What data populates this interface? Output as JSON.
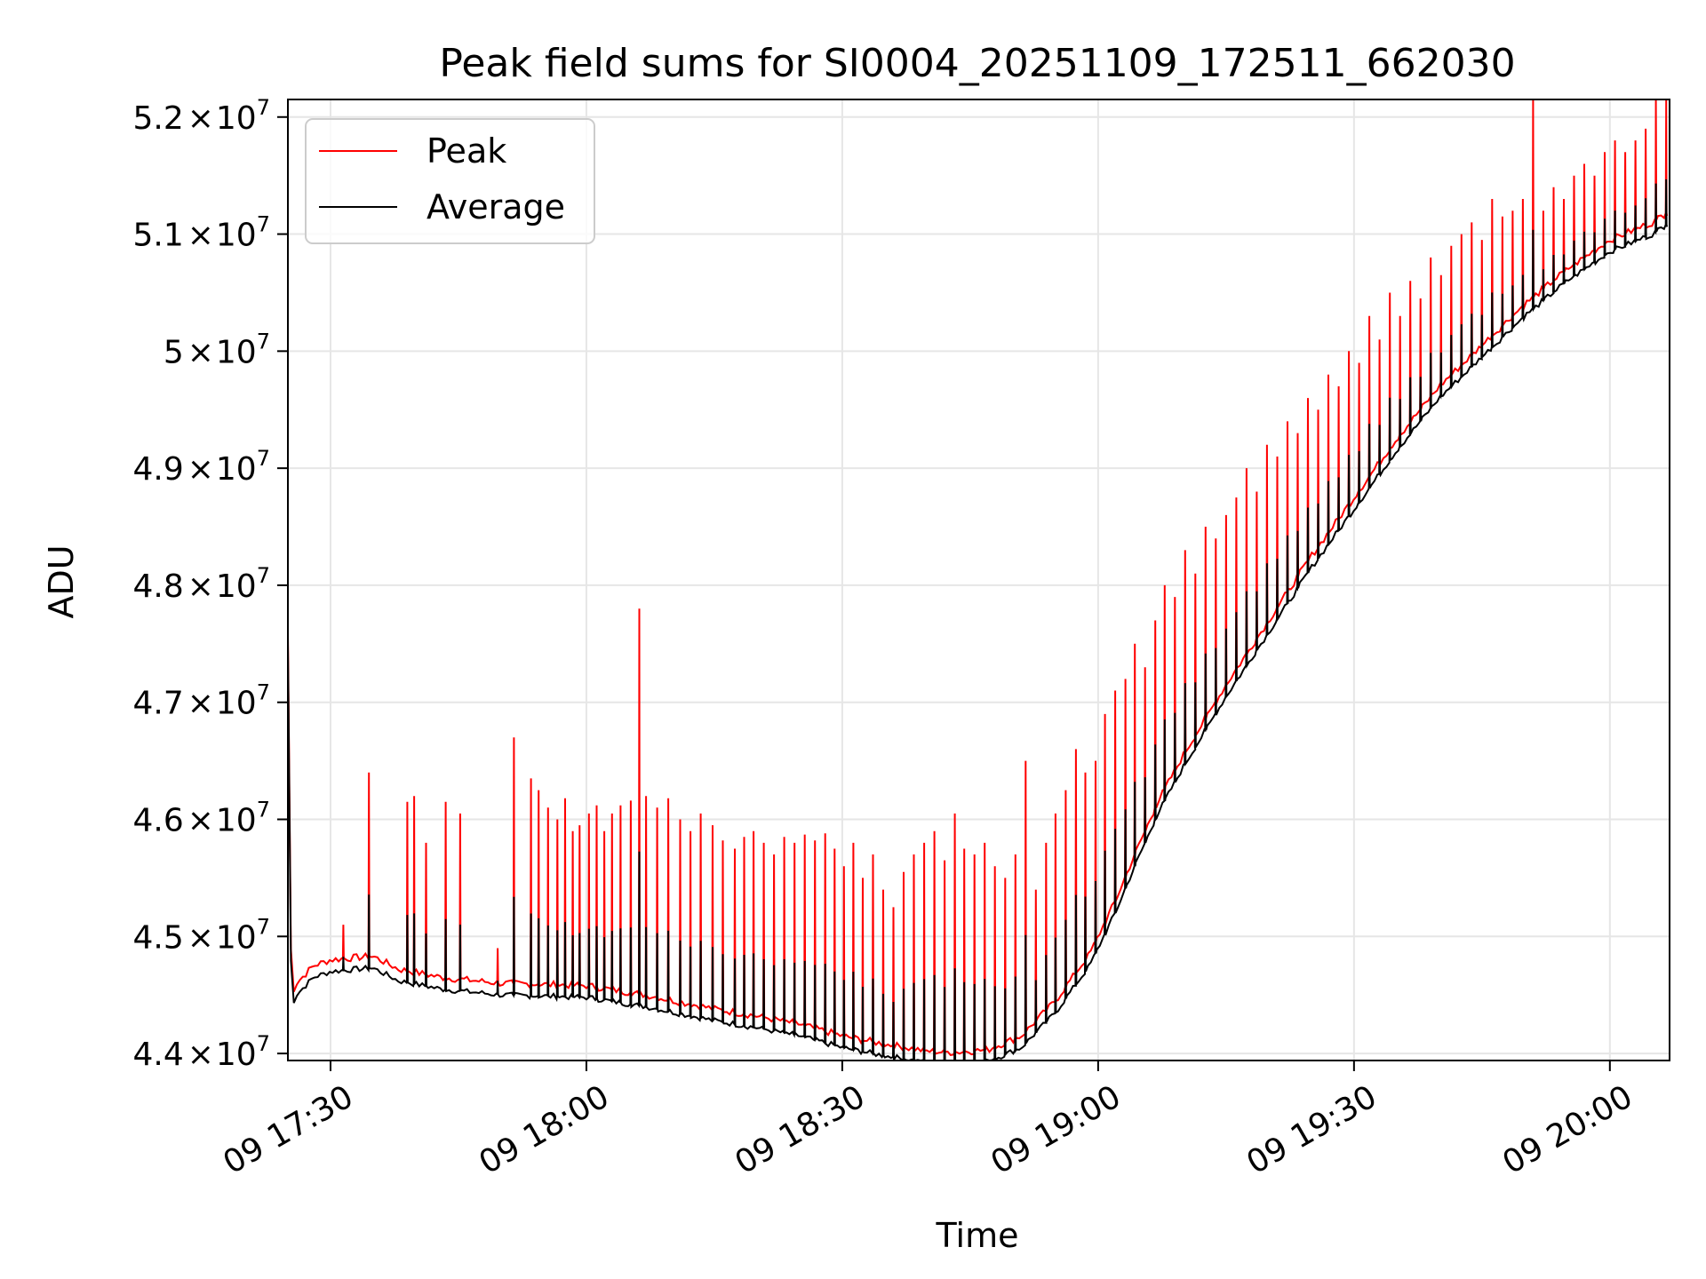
{
  "chart_data": {
    "type": "line",
    "title": "Peak field sums for SI0004_20251109_172511_662030",
    "xlabel": "Time",
    "ylabel": "ADU",
    "grid": true,
    "legend_position": "top-left",
    "x_unit": "minutes since 09 17:25",
    "xlim": [
      0,
      162
    ],
    "ylim": [
      43940000,
      52150000
    ],
    "x_ticks": [
      {
        "value": 5,
        "label": "09 17:30"
      },
      {
        "value": 35,
        "label": "09 18:00"
      },
      {
        "value": 65,
        "label": "09 18:30"
      },
      {
        "value": 95,
        "label": "09 19:00"
      },
      {
        "value": 125,
        "label": "09 19:30"
      },
      {
        "value": 155,
        "label": "09 20:00"
      }
    ],
    "y_ticks": [
      {
        "value": 44000000,
        "mantissa": "4.4",
        "exp": "7"
      },
      {
        "value": 45000000,
        "mantissa": "4.5",
        "exp": "7"
      },
      {
        "value": 46000000,
        "mantissa": "4.6",
        "exp": "7"
      },
      {
        "value": 47000000,
        "mantissa": "4.7",
        "exp": "7"
      },
      {
        "value": 48000000,
        "mantissa": "4.8",
        "exp": "7"
      },
      {
        "value": 49000000,
        "mantissa": "4.9",
        "exp": "7"
      },
      {
        "value": 50000000,
        "mantissa": "5",
        "exp": "7"
      },
      {
        "value": 51000000,
        "mantissa": "5.1",
        "exp": "7"
      },
      {
        "value": 52000000,
        "mantissa": "5.2",
        "exp": "7"
      }
    ],
    "tick_times_symbol": "×",
    "tick_base": "10",
    "series": [
      {
        "name": "Peak",
        "color": "#ff0000",
        "baseline": {
          "x": [
            0,
            0.4,
            1,
            3,
            5,
            8,
            10,
            13,
            18,
            25,
            35,
            42,
            50,
            55,
            60,
            65,
            70,
            75,
            78,
            82,
            86,
            88,
            90,
            92,
            94,
            95,
            97,
            99,
            102,
            105,
            110,
            115,
            120,
            125,
            130,
            135,
            140,
            145,
            150,
            155,
            160,
            162
          ],
          "y": [
            47600000,
            44500000,
            44600000,
            44750000,
            44800000,
            44820000,
            44830000,
            44720000,
            44650000,
            44600000,
            44580000,
            44500000,
            44380000,
            44320000,
            44250000,
            44150000,
            44080000,
            44020000,
            44010000,
            44030000,
            44150000,
            44300000,
            44450000,
            44650000,
            44850000,
            45000000,
            45300000,
            45650000,
            46150000,
            46550000,
            47150000,
            47700000,
            48250000,
            48750000,
            49250000,
            49700000,
            50050000,
            50400000,
            50700000,
            50950000,
            51100000,
            51200000
          ]
        },
        "spikes": [
          {
            "x": 6.5,
            "y": 45100000
          },
          {
            "x": 9.5,
            "y": 46400000
          },
          {
            "x": 14,
            "y": 46150000
          },
          {
            "x": 14.8,
            "y": 46200000
          },
          {
            "x": 16.2,
            "y": 45800000
          },
          {
            "x": 18.5,
            "y": 46150000
          },
          {
            "x": 20.2,
            "y": 46050000
          },
          {
            "x": 24.6,
            "y": 44900000
          },
          {
            "x": 26.5,
            "y": 46700000
          },
          {
            "x": 28.5,
            "y": 46350000
          },
          {
            "x": 29.4,
            "y": 46250000
          },
          {
            "x": 30.5,
            "y": 46100000
          },
          {
            "x": 31.6,
            "y": 46000000
          },
          {
            "x": 32.5,
            "y": 46180000
          },
          {
            "x": 33.4,
            "y": 45900000
          },
          {
            "x": 34.2,
            "y": 45950000
          },
          {
            "x": 35.3,
            "y": 46050000
          },
          {
            "x": 36.2,
            "y": 46120000
          },
          {
            "x": 37.1,
            "y": 45900000
          },
          {
            "x": 38,
            "y": 46050000
          },
          {
            "x": 39,
            "y": 46120000
          },
          {
            "x": 40.2,
            "y": 46160000
          },
          {
            "x": 41.2,
            "y": 47800000
          },
          {
            "x": 42,
            "y": 46200000
          },
          {
            "x": 43.3,
            "y": 46100000
          },
          {
            "x": 44.6,
            "y": 46180000
          },
          {
            "x": 46,
            "y": 46000000
          },
          {
            "x": 47.2,
            "y": 45900000
          },
          {
            "x": 48.4,
            "y": 46050000
          },
          {
            "x": 49.8,
            "y": 45950000
          },
          {
            "x": 51,
            "y": 45820000
          },
          {
            "x": 52.4,
            "y": 45750000
          },
          {
            "x": 53.5,
            "y": 45850000
          },
          {
            "x": 54.6,
            "y": 45900000
          },
          {
            "x": 55.8,
            "y": 45800000
          },
          {
            "x": 57,
            "y": 45700000
          },
          {
            "x": 58.2,
            "y": 45850000
          },
          {
            "x": 59.4,
            "y": 45800000
          },
          {
            "x": 60.6,
            "y": 45870000
          },
          {
            "x": 61.8,
            "y": 45820000
          },
          {
            "x": 63,
            "y": 45880000
          },
          {
            "x": 64.1,
            "y": 45750000
          },
          {
            "x": 65.2,
            "y": 45600000
          },
          {
            "x": 66.3,
            "y": 45800000
          },
          {
            "x": 67.4,
            "y": 45500000
          },
          {
            "x": 68.6,
            "y": 45700000
          },
          {
            "x": 69.8,
            "y": 45400000
          },
          {
            "x": 71,
            "y": 45250000
          },
          {
            "x": 72.2,
            "y": 45550000
          },
          {
            "x": 73.4,
            "y": 45700000
          },
          {
            "x": 74.6,
            "y": 45800000
          },
          {
            "x": 75.8,
            "y": 45900000
          },
          {
            "x": 77,
            "y": 45650000
          },
          {
            "x": 78.2,
            "y": 46050000
          },
          {
            "x": 79.3,
            "y": 45750000
          },
          {
            "x": 80.5,
            "y": 45700000
          },
          {
            "x": 81.7,
            "y": 45800000
          },
          {
            "x": 82.9,
            "y": 45600000
          },
          {
            "x": 84.1,
            "y": 45500000
          },
          {
            "x": 85.3,
            "y": 45700000
          },
          {
            "x": 86.5,
            "y": 46500000
          },
          {
            "x": 87.7,
            "y": 45400000
          },
          {
            "x": 88.9,
            "y": 45800000
          },
          {
            "x": 90,
            "y": 46050000
          },
          {
            "x": 91.2,
            "y": 46250000
          },
          {
            "x": 92.4,
            "y": 46600000
          },
          {
            "x": 93.5,
            "y": 46400000
          },
          {
            "x": 94.7,
            "y": 46500000
          },
          {
            "x": 95.8,
            "y": 46900000
          },
          {
            "x": 97,
            "y": 47100000
          },
          {
            "x": 98.2,
            "y": 47200000
          },
          {
            "x": 99.3,
            "y": 47500000
          },
          {
            "x": 100.5,
            "y": 47300000
          },
          {
            "x": 101.7,
            "y": 47700000
          },
          {
            "x": 102.8,
            "y": 48000000
          },
          {
            "x": 104,
            "y": 47900000
          },
          {
            "x": 105.2,
            "y": 48300000
          },
          {
            "x": 106.4,
            "y": 48100000
          },
          {
            "x": 107.6,
            "y": 48500000
          },
          {
            "x": 108.8,
            "y": 48400000
          },
          {
            "x": 110,
            "y": 48600000
          },
          {
            "x": 111.2,
            "y": 48750000
          },
          {
            "x": 112.4,
            "y": 49000000
          },
          {
            "x": 113.6,
            "y": 48800000
          },
          {
            "x": 114.8,
            "y": 49200000
          },
          {
            "x": 116,
            "y": 49100000
          },
          {
            "x": 117.2,
            "y": 49400000
          },
          {
            "x": 118.4,
            "y": 49300000
          },
          {
            "x": 119.6,
            "y": 49600000
          },
          {
            "x": 120.8,
            "y": 49500000
          },
          {
            "x": 122,
            "y": 49800000
          },
          {
            "x": 123.2,
            "y": 49700000
          },
          {
            "x": 124.4,
            "y": 50000000
          },
          {
            "x": 125.6,
            "y": 49900000
          },
          {
            "x": 126.8,
            "y": 50300000
          },
          {
            "x": 128,
            "y": 50100000
          },
          {
            "x": 129.2,
            "y": 50500000
          },
          {
            "x": 130.4,
            "y": 50300000
          },
          {
            "x": 131.6,
            "y": 50600000
          },
          {
            "x": 132.8,
            "y": 50450000
          },
          {
            "x": 134,
            "y": 50800000
          },
          {
            "x": 135.2,
            "y": 50650000
          },
          {
            "x": 136.4,
            "y": 50900000
          },
          {
            "x": 137.6,
            "y": 51000000
          },
          {
            "x": 138.8,
            "y": 51100000
          },
          {
            "x": 140,
            "y": 50950000
          },
          {
            "x": 141.2,
            "y": 51300000
          },
          {
            "x": 142.4,
            "y": 51150000
          },
          {
            "x": 143.6,
            "y": 51200000
          },
          {
            "x": 144.8,
            "y": 51300000
          },
          {
            "x": 146,
            "y": 52150000
          },
          {
            "x": 147.2,
            "y": 51200000
          },
          {
            "x": 148.4,
            "y": 51400000
          },
          {
            "x": 149.6,
            "y": 51300000
          },
          {
            "x": 150.8,
            "y": 51500000
          },
          {
            "x": 152,
            "y": 51600000
          },
          {
            "x": 153.2,
            "y": 51500000
          },
          {
            "x": 154.4,
            "y": 51700000
          },
          {
            "x": 155.6,
            "y": 51800000
          },
          {
            "x": 156.8,
            "y": 51700000
          },
          {
            "x": 158,
            "y": 51800000
          },
          {
            "x": 159.2,
            "y": 51900000
          },
          {
            "x": 160.4,
            "y": 52150000
          },
          {
            "x": 161.6,
            "y": 52150000
          }
        ]
      },
      {
        "name": "Average",
        "color": "#000000",
        "offset_below_peak": 100000,
        "spike_fraction": 0.4
      }
    ]
  }
}
